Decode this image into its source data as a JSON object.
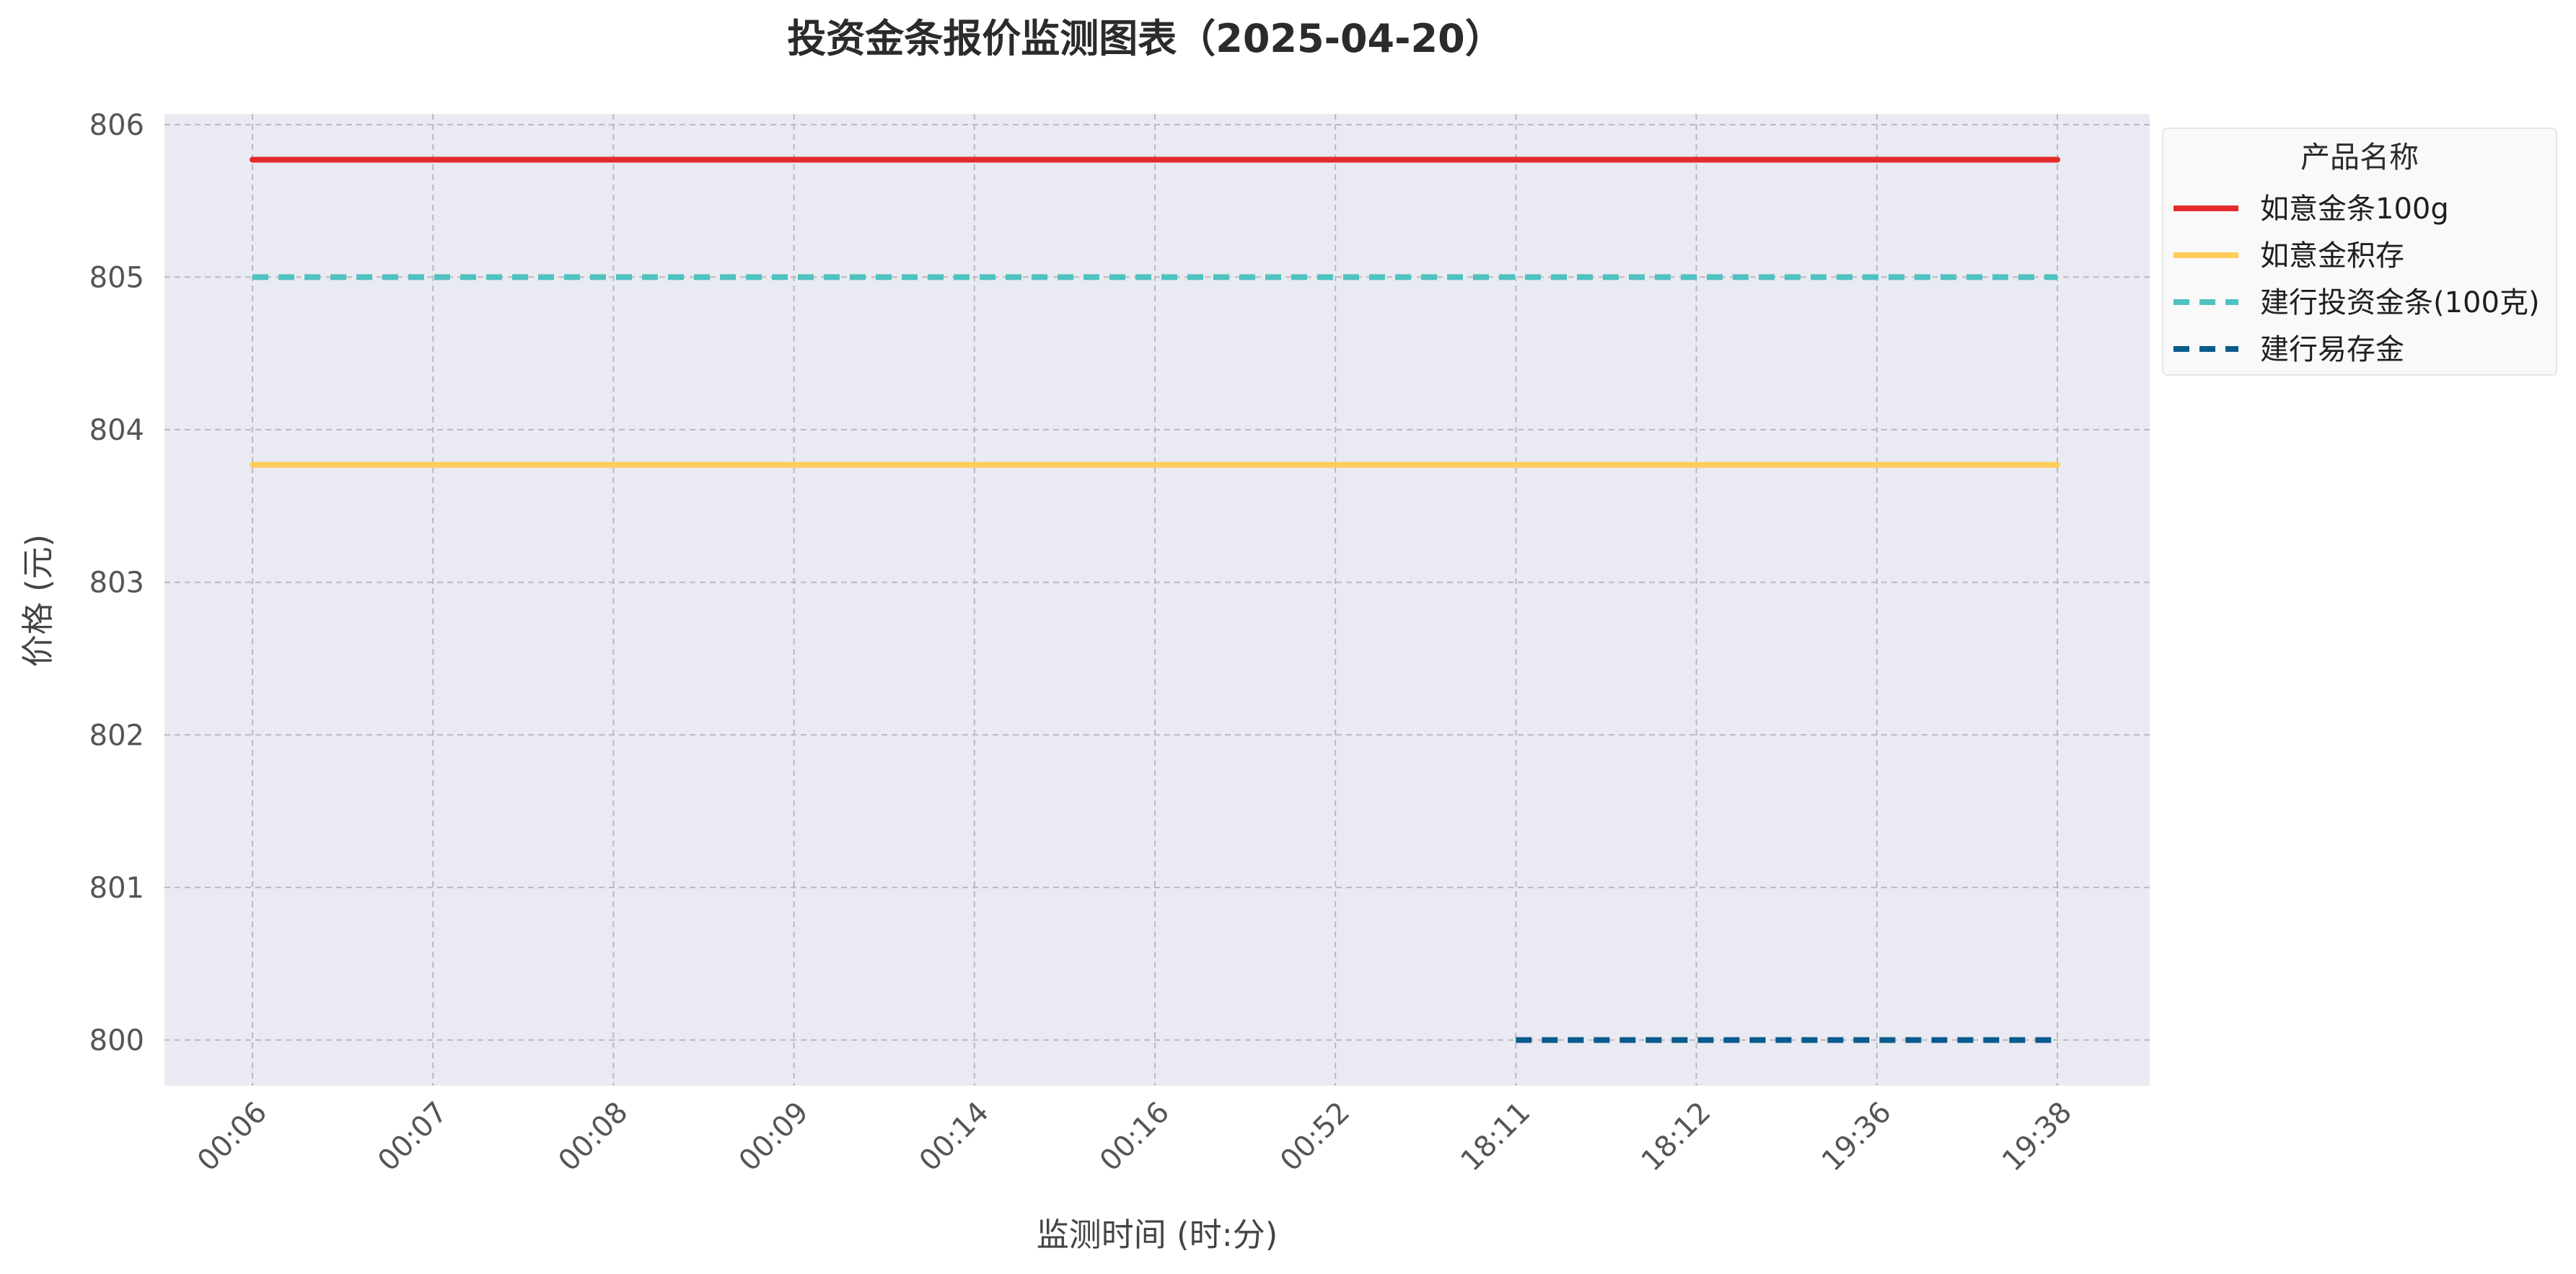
{
  "chart_data": {
    "type": "line",
    "title": "投资金条报价监测图表（2025-04-20）",
    "xlabel": "监测时间 (时:分)",
    "ylabel": "价格 (元)",
    "categories": [
      "00:06",
      "00:07",
      "00:08",
      "00:09",
      "00:14",
      "00:16",
      "00:52",
      "18:11",
      "18:12",
      "19:36",
      "19:38"
    ],
    "yticks": [
      800,
      801,
      802,
      803,
      804,
      805,
      806
    ],
    "ylim": [
      799.7,
      806.07
    ],
    "grid": true,
    "legend": {
      "title": "产品名称",
      "placement": "outside-top-right"
    },
    "series": [
      {
        "name": "如意金条100g",
        "color": "#e32b2b",
        "style": "solid",
        "values": [
          805.77,
          805.77,
          805.77,
          805.77,
          805.77,
          805.77,
          805.77,
          805.77,
          805.77,
          805.77,
          805.77
        ]
      },
      {
        "name": "如意金积存",
        "color": "#ffcd5a",
        "style": "solid",
        "values": [
          803.77,
          803.77,
          803.77,
          803.77,
          803.77,
          803.77,
          803.77,
          803.77,
          803.77,
          803.77,
          803.77
        ]
      },
      {
        "name": "建行投资金条(100克)",
        "color": "#4fc2c0",
        "style": "dashed",
        "values": [
          805.0,
          805.0,
          805.0,
          805.0,
          805.0,
          805.0,
          805.0,
          805.0,
          805.0,
          805.0,
          805.0
        ]
      },
      {
        "name": "建行易存金",
        "color": "#0b5a8c",
        "style": "dashed",
        "values": [
          null,
          null,
          null,
          null,
          null,
          null,
          null,
          800.0,
          800.0,
          800.0,
          800.0
        ]
      }
    ]
  }
}
